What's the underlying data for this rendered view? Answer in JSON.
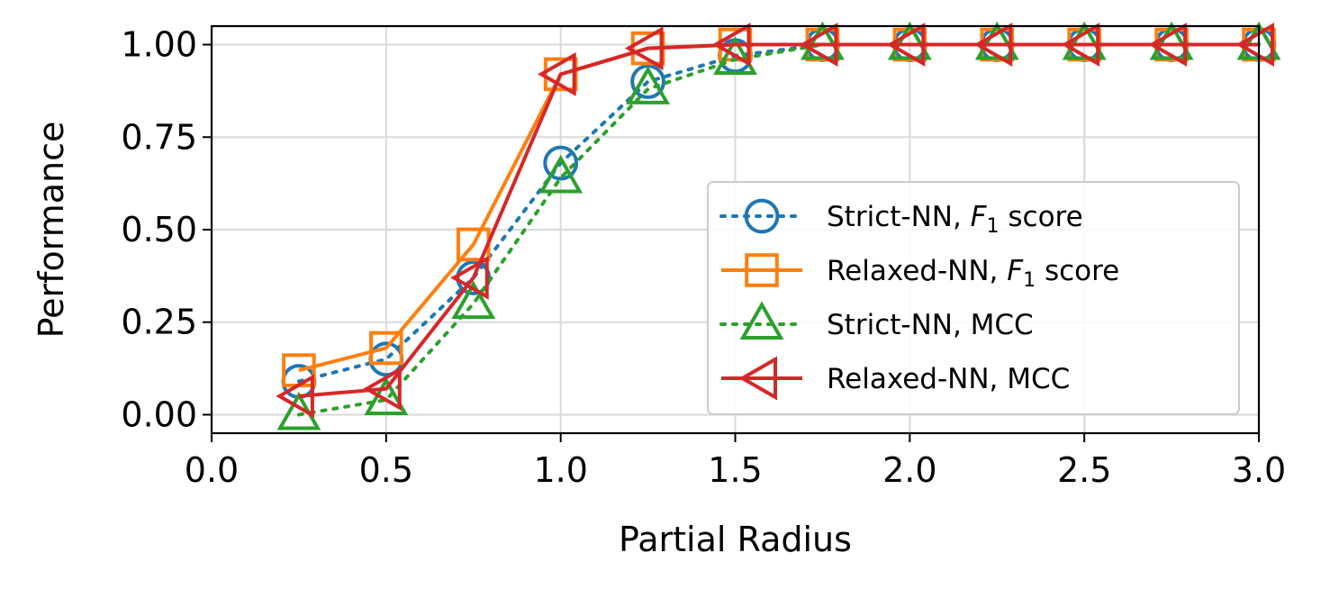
{
  "chart_data": {
    "type": "line",
    "xlabel": "Partial Radius",
    "ylabel": "Performance",
    "xlim": [
      0.0,
      3.0
    ],
    "ylim": [
      -0.05,
      1.05
    ],
    "xticks": [
      "0.0",
      "0.5",
      "1.0",
      "1.5",
      "2.0",
      "2.5",
      "3.0"
    ],
    "yticks": [
      "0.00",
      "0.25",
      "0.50",
      "0.75",
      "1.00"
    ],
    "grid": true,
    "legend_position": "center-right",
    "x": [
      0.25,
      0.5,
      0.75,
      1.0,
      1.25,
      1.5,
      1.75,
      2.0,
      2.25,
      2.5,
      2.75,
      3.0
    ],
    "series": [
      {
        "name": "Strict-NN, F1 score",
        "label_main": "Strict-NN, ",
        "label_sub": "1",
        "label_tail": " score",
        "color": "#1f77b4",
        "linestyle": "dotted",
        "marker": "circle",
        "values": [
          0.09,
          0.15,
          0.37,
          0.68,
          0.9,
          0.97,
          1.0,
          1.0,
          1.0,
          1.0,
          1.0,
          1.0
        ]
      },
      {
        "name": "Relaxed-NN, F1 score",
        "label_main": "Relaxed-NN, ",
        "label_sub": "1",
        "label_tail": " score",
        "color": "#ff7f0e",
        "linestyle": "solid",
        "marker": "square",
        "values": [
          0.12,
          0.18,
          0.46,
          0.92,
          0.99,
          1.0,
          1.0,
          1.0,
          1.0,
          1.0,
          1.0,
          1.0
        ]
      },
      {
        "name": "Strict-NN, MCC",
        "label_main": "Strict-NN, MCC",
        "color": "#2ca02c",
        "linestyle": "dotted",
        "marker": "triangle-up",
        "values": [
          0.0,
          0.04,
          0.3,
          0.64,
          0.88,
          0.96,
          1.0,
          1.0,
          1.0,
          1.0,
          1.0,
          1.0
        ]
      },
      {
        "name": "Relaxed-NN, MCC",
        "label_main": "Relaxed-NN, MCC",
        "color": "#d62728",
        "linestyle": "solid",
        "marker": "triangle-left",
        "values": [
          0.05,
          0.07,
          0.37,
          0.92,
          0.99,
          1.0,
          1.0,
          1.0,
          1.0,
          1.0,
          1.0,
          1.0
        ]
      }
    ]
  }
}
